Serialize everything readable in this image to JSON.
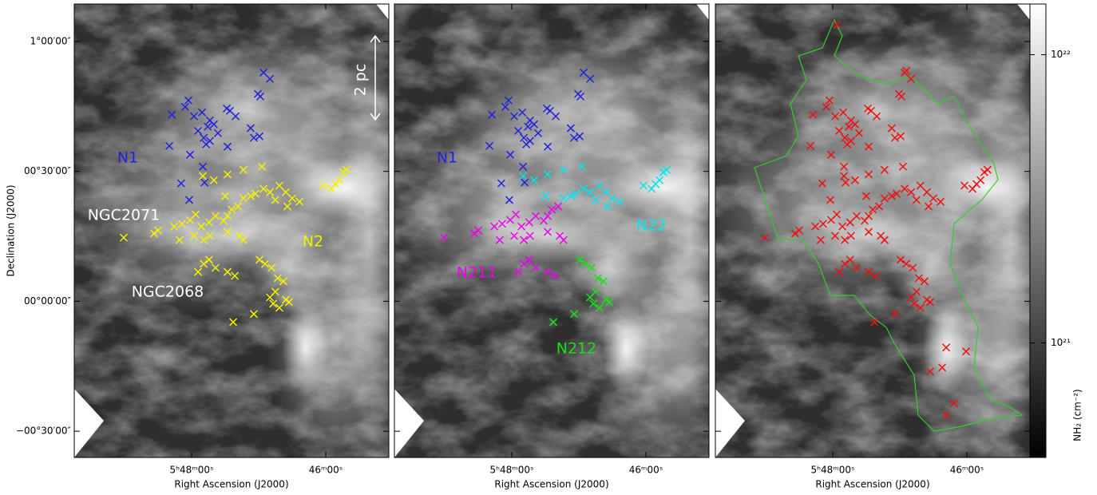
{
  "chart_data": [
    {
      "type": "scatter",
      "xlabel": "Right Ascension (J2000)",
      "ylabel": "Declination (J2000)",
      "xlim": [
        87.4375,
        86.2649
      ],
      "ylim": [
        -0.601,
        1.144
      ],
      "xticks": [
        {
          "value": 87,
          "label": "5ʰ48ᵐ00ˢ"
        },
        {
          "value": 86.5,
          "label": "46ᵐ00ˢ"
        }
      ],
      "yticks": [
        {
          "value": 1,
          "label": "1°00′00″"
        },
        {
          "value": 0.5,
          "label": "00°30′00″"
        },
        {
          "value": 0,
          "label": "00°00′00″"
        },
        {
          "value": -0.5,
          "label": "−00°30′00″"
        }
      ],
      "annotations": [
        "NGC2071",
        "NGC2068",
        "2 pc"
      ],
      "series": [
        {
          "name": "N1",
          "color": "#2222dd",
          "x": [
            86.732,
            86.708,
            86.744,
            86.753,
            87.012,
            87.024,
            87.074,
            86.991,
            86.961,
            86.932,
            86.94,
            86.917,
            86.869,
            86.857,
            86.836,
            86.976,
            86.955,
            86.932,
            86.902,
            86.866,
            86.78,
            86.768,
            86.747,
            87.083,
            87.006,
            86.958,
            86.952,
            87.039,
            87.009,
            86.946
          ],
          "values": [
            0.88,
            0.856,
            0.788,
            0.798,
            0.773,
            0.748,
            0.718,
            0.712,
            0.727,
            0.696,
            0.672,
            0.681,
            0.742,
            0.733,
            0.712,
            0.656,
            0.629,
            0.617,
            0.647,
            0.595,
            0.666,
            0.629,
            0.635,
            0.598,
            0.564,
            0.518,
            0.457,
            0.454,
            0.39,
            0.604
          ]
        },
        {
          "name": "N2",
          "color": "#f2f200",
          "x": [
            87.253,
            87.14,
            87.125,
            87.065,
            87.036,
            87.006,
            86.985,
            86.964,
            86.935,
            86.911,
            86.881,
            86.866,
            86.851,
            86.827,
            86.807,
            86.78,
            86.762,
            86.866,
            86.821,
            86.807,
            86.932,
            86.991,
            87.045,
            86.955,
            86.875,
            86.866,
            86.807,
            86.738,
            86.958,
            86.917,
            86.732,
            86.708,
            86.673,
            86.649,
            86.625,
            86.598,
            86.643,
            86.688,
            86.509,
            86.479,
            86.464,
            86.449,
            86.435,
            86.423,
            86.955,
            86.935,
            86.911,
            86.866,
            86.839,
            86.976,
            86.747,
            86.726,
            86.702,
            86.679,
            86.658,
            86.688,
            86.708,
            86.696,
            86.673,
            86.649,
            86.637,
            86.768,
            86.845
          ],
          "values": [
            0.245,
            0.261,
            0.273,
            0.288,
            0.298,
            0.313,
            0.334,
            0.288,
            0.304,
            0.328,
            0.31,
            0.328,
            0.353,
            0.365,
            0.396,
            0.405,
            0.414,
            0.267,
            0.252,
            0.236,
            0.252,
            0.252,
            0.236,
            0.236,
            0.405,
            0.488,
            0.506,
            0.518,
            0.482,
            0.466,
            0.433,
            0.42,
            0.445,
            0.42,
            0.396,
            0.383,
            0.365,
            0.39,
            0.445,
            0.433,
            0.451,
            0.466,
            0.497,
            0.506,
            0.144,
            0.16,
            0.129,
            0.113,
            0.098,
            0.113,
            0.16,
            0.144,
            0.129,
            0.089,
            0.077,
            0.037,
            0.015,
            -0.009,
            -0.025,
            0.006,
            -0.003,
            -0.049,
            -0.08
          ]
        }
      ]
    },
    {
      "type": "scatter",
      "xlabel": "Right Ascension (J2000)",
      "xlim": [
        87.4375,
        86.2649
      ],
      "ylim": [
        -0.601,
        1.144
      ],
      "xticks": [
        {
          "value": 87,
          "label": "5ʰ48ᵐ00ˢ"
        },
        {
          "value": 86.5,
          "label": "46ᵐ00ˢ"
        }
      ],
      "series": [
        {
          "name": "N1",
          "color": "#2222dd",
          "x": [
            86.732,
            86.708,
            86.744,
            86.753,
            87.012,
            87.024,
            87.074,
            86.991,
            86.961,
            86.932,
            86.94,
            86.917,
            86.869,
            86.857,
            86.836,
            86.976,
            86.955,
            86.932,
            86.902,
            86.866,
            86.78,
            86.768,
            86.747,
            87.083,
            87.006,
            86.958,
            86.952,
            87.039,
            87.009,
            86.946
          ],
          "values": [
            0.88,
            0.856,
            0.788,
            0.798,
            0.773,
            0.748,
            0.718,
            0.712,
            0.727,
            0.696,
            0.672,
            0.681,
            0.742,
            0.733,
            0.712,
            0.656,
            0.629,
            0.617,
            0.647,
            0.595,
            0.666,
            0.629,
            0.635,
            0.598,
            0.564,
            0.518,
            0.457,
            0.454,
            0.39,
            0.604
          ]
        },
        {
          "name": "N22",
          "color": "#00e5ee",
          "x": [
            86.807,
            86.78,
            86.762,
            86.875,
            86.866,
            86.807,
            86.738,
            86.958,
            86.917,
            86.732,
            86.708,
            86.673,
            86.649,
            86.625,
            86.598,
            86.643,
            86.688,
            86.509,
            86.479,
            86.464,
            86.449,
            86.435,
            86.423
          ],
          "values": [
            0.396,
            0.405,
            0.414,
            0.405,
            0.488,
            0.506,
            0.518,
            0.482,
            0.466,
            0.433,
            0.42,
            0.445,
            0.42,
            0.396,
            0.383,
            0.365,
            0.39,
            0.445,
            0.433,
            0.451,
            0.466,
            0.497,
            0.506
          ]
        },
        {
          "name": "N211",
          "color": "#ee00ee",
          "x": [
            87.253,
            87.14,
            87.125,
            87.065,
            87.036,
            87.006,
            86.985,
            86.964,
            86.935,
            86.911,
            86.881,
            86.866,
            86.851,
            86.827,
            86.866,
            86.821,
            86.807,
            86.932,
            86.991,
            87.045,
            86.955,
            86.955,
            86.935,
            86.911,
            86.866,
            86.839,
            86.976
          ],
          "values": [
            0.245,
            0.261,
            0.273,
            0.288,
            0.298,
            0.313,
            0.334,
            0.288,
            0.304,
            0.328,
            0.31,
            0.328,
            0.353,
            0.365,
            0.267,
            0.252,
            0.236,
            0.252,
            0.252,
            0.236,
            0.236,
            0.144,
            0.16,
            0.129,
            0.113,
            0.098,
            0.113
          ]
        },
        {
          "name": "N212",
          "color": "#18e018",
          "x": [
            86.747,
            86.726,
            86.702,
            86.679,
            86.658,
            86.688,
            86.708,
            86.696,
            86.673,
            86.649,
            86.637,
            86.768,
            86.845
          ],
          "values": [
            0.16,
            0.144,
            0.129,
            0.089,
            0.077,
            0.037,
            0.015,
            -0.009,
            -0.025,
            0.006,
            -0.003,
            -0.049,
            -0.08
          ]
        }
      ]
    },
    {
      "type": "scatter",
      "xlabel": "Right Ascension (J2000)",
      "xlim": [
        87.4375,
        86.2649
      ],
      "ylim": [
        -0.601,
        1.144
      ],
      "xticks": [
        {
          "value": 87,
          "label": "5ʰ48ᵐ00ˢ"
        },
        {
          "value": 86.5,
          "label": "46ᵐ00ˢ"
        }
      ],
      "colorbar": {
        "label": "NH₂ (cm⁻²)",
        "log": true,
        "clim": [
          4e+20,
          1.5e+22
        ],
        "ticks": [
          {
            "value": 1e+22,
            "label": "10²²"
          },
          {
            "value": 1e+21,
            "label": "10²¹"
          }
        ]
      },
      "series": [
        {
          "color": "#ee1111",
          "x": [
            86.732,
            86.708,
            86.744,
            86.753,
            87.012,
            87.024,
            87.074,
            86.991,
            86.961,
            86.932,
            86.94,
            86.917,
            86.869,
            86.857,
            86.836,
            86.976,
            86.955,
            86.932,
            86.902,
            86.866,
            86.78,
            86.768,
            86.747,
            87.083,
            87.006,
            86.958,
            86.952,
            87.039,
            87.009,
            86.946,
            87.253,
            87.14,
            87.125,
            87.065,
            87.036,
            87.006,
            86.985,
            86.964,
            86.935,
            86.911,
            86.881,
            86.866,
            86.851,
            86.827,
            86.807,
            86.78,
            86.762,
            86.866,
            86.821,
            86.807,
            86.932,
            86.991,
            87.045,
            86.955,
            86.875,
            86.866,
            86.807,
            86.738,
            86.958,
            86.917,
            86.732,
            86.708,
            86.673,
            86.649,
            86.625,
            86.598,
            86.643,
            86.688,
            86.509,
            86.479,
            86.464,
            86.449,
            86.435,
            86.423,
            86.955,
            86.935,
            86.911,
            86.866,
            86.839,
            86.976,
            86.747,
            86.726,
            86.702,
            86.679,
            86.658,
            86.688,
            86.708,
            86.696,
            86.673,
            86.649,
            86.637,
            86.768,
            86.845,
            86.985,
            86.726,
            86.592,
            86.577,
            86.548,
            86.503,
            86.637,
            86.577
          ],
          "values": [
            0.88,
            0.856,
            0.788,
            0.798,
            0.773,
            0.748,
            0.718,
            0.712,
            0.727,
            0.696,
            0.672,
            0.681,
            0.742,
            0.733,
            0.712,
            0.656,
            0.629,
            0.617,
            0.647,
            0.595,
            0.666,
            0.629,
            0.635,
            0.598,
            0.564,
            0.518,
            0.457,
            0.454,
            0.39,
            0.604,
            0.245,
            0.261,
            0.273,
            0.288,
            0.298,
            0.313,
            0.334,
            0.288,
            0.304,
            0.328,
            0.31,
            0.328,
            0.353,
            0.365,
            0.396,
            0.405,
            0.414,
            0.267,
            0.252,
            0.236,
            0.252,
            0.252,
            0.236,
            0.236,
            0.405,
            0.488,
            0.506,
            0.518,
            0.482,
            0.466,
            0.433,
            0.42,
            0.445,
            0.42,
            0.396,
            0.383,
            0.365,
            0.39,
            0.445,
            0.433,
            0.451,
            0.466,
            0.497,
            0.506,
            0.144,
            0.16,
            0.129,
            0.113,
            0.098,
            0.113,
            0.16,
            0.144,
            0.129,
            0.089,
            0.077,
            0.037,
            0.015,
            -0.009,
            -0.025,
            0.006,
            -0.003,
            -0.049,
            -0.08,
            1.064,
            0.887,
            -0.255,
            -0.439,
            -0.393,
            -0.193,
            -0.27,
            -0.178
          ]
        }
      ]
    }
  ]
}
